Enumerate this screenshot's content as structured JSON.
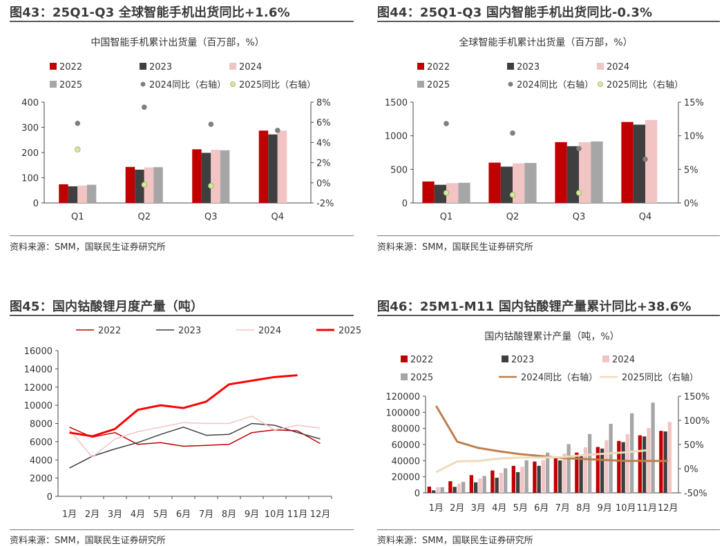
{
  "colors": {
    "c2022": "#c00000",
    "c2023": "#3f3f3f",
    "c2024": "#f2c4c4",
    "c2025": "#a6a6a6",
    "dot2024": "#7f7f7f",
    "dot2025": "#d5e8a3",
    "line2022": "#c00000",
    "line2023": "#3f3f3f",
    "line2024": "#f2c4c4",
    "line2025": "#ff0000",
    "line2024yoy": "#c07d4a",
    "line2025yoy": "#eddcbc"
  },
  "panels": {
    "p43": {
      "title": "图43：25Q1-Q3 全球智能手机出货同比+1.6%",
      "source": "资料来源：SMM，国联民生证券研究所"
    },
    "p44": {
      "title": "图44：25Q1-Q3 国内智能手机出货同比-0.3%",
      "source": "资料来源：SMM，国联民生证券研究所"
    },
    "p45": {
      "title": "图45：国内钴酸锂月度产量（吨）",
      "source": "资料来源：SMM，国联民生证券研究所"
    },
    "p46": {
      "title": "图46：25M1-M11 国内钴酸锂产量累计同比+38.6%",
      "source": "资料来源：SMM，国联民生证券研究所"
    }
  },
  "chart_data": [
    {
      "id": "c43",
      "type": "bar",
      "title": "中国智能手机累计出货量（百万部，%）",
      "categories": [
        "Q1",
        "Q2",
        "Q3",
        "Q4"
      ],
      "ylim": [
        0,
        400
      ],
      "yticks": [
        0,
        100,
        200,
        300,
        400
      ],
      "ytick_labels": [
        "0",
        "100",
        "200",
        "300",
        "400"
      ],
      "y2lim": [
        -2,
        8
      ],
      "y2ticks": [
        -2,
        0,
        2,
        4,
        6,
        8
      ],
      "y2tick_labels": [
        "-2%",
        "0%",
        "2%",
        "4%",
        "6%",
        "8%"
      ],
      "series": [
        {
          "name": "2022",
          "kind": "bar",
          "color_key": "c2022",
          "values": [
            74,
            143,
            213,
            287
          ]
        },
        {
          "name": "2023",
          "kind": "bar",
          "color_key": "c2023",
          "values": [
            66,
            132,
            199,
            272
          ]
        },
        {
          "name": "2024",
          "kind": "bar",
          "color_key": "c2024",
          "values": [
            69,
            141,
            211,
            287
          ]
        },
        {
          "name": "2025",
          "kind": "bar",
          "color_key": "c2025",
          "values": [
            72,
            142,
            209,
            null
          ]
        },
        {
          "name": "2024同比（右轴）",
          "kind": "dot",
          "axis": "right",
          "color_key": "dot2024",
          "values": [
            5.9,
            7.5,
            5.8,
            5.2
          ]
        },
        {
          "name": "2025同比（右轴）",
          "kind": "dot",
          "axis": "right",
          "color_key": "dot2025",
          "values": [
            3.3,
            -0.2,
            -0.3,
            null
          ]
        }
      ]
    },
    {
      "id": "c44",
      "type": "bar",
      "title": "全球智能手机累计出货量（百万部，%）",
      "categories": [
        "Q1",
        "Q2",
        "Q3",
        "Q4"
      ],
      "ylim": [
        0,
        1500
      ],
      "yticks": [
        0,
        500,
        1000,
        1500
      ],
      "ytick_labels": [
        "0",
        "500",
        "1000",
        "1500"
      ],
      "y2lim": [
        0,
        15
      ],
      "y2ticks": [
        0,
        5,
        10,
        15
      ],
      "y2tick_labels": [
        "0%",
        "5%",
        "10%",
        "15%"
      ],
      "series": [
        {
          "name": "2022",
          "kind": "bar",
          "color_key": "c2022",
          "values": [
            320,
            600,
            905,
            1205
          ]
        },
        {
          "name": "2023",
          "kind": "bar",
          "color_key": "c2023",
          "values": [
            270,
            540,
            845,
            1165
          ]
        },
        {
          "name": "2024",
          "kind": "bar",
          "color_key": "c2024",
          "values": [
            295,
            590,
            905,
            1235
          ]
        },
        {
          "name": "2025",
          "kind": "bar",
          "color_key": "c2025",
          "values": [
            300,
            595,
            915,
            null
          ]
        },
        {
          "name": "2024同比（右轴）",
          "kind": "dot",
          "axis": "right",
          "color_key": "dot2024",
          "values": [
            11.8,
            10.4,
            8.1,
            6.5
          ]
        },
        {
          "name": "2025同比（右轴）",
          "kind": "dot",
          "axis": "right",
          "color_key": "dot2025",
          "values": [
            1.5,
            1.2,
            1.5,
            null
          ]
        }
      ]
    },
    {
      "id": "c45",
      "type": "line",
      "categories": [
        "1月",
        "2月",
        "3月",
        "4月",
        "5月",
        "6月",
        "7月",
        "8月",
        "9月",
        "10月",
        "11月",
        "12月"
      ],
      "ylim": [
        0,
        16000
      ],
      "yticks": [
        0,
        2000,
        4000,
        6000,
        8000,
        10000,
        12000,
        14000,
        16000
      ],
      "ytick_labels": [
        "0",
        "2000",
        "4000",
        "6000",
        "8000",
        "10000",
        "12000",
        "14000",
        "16000"
      ],
      "series": [
        {
          "name": "2022",
          "color_key": "line2022",
          "width": 1.5,
          "values": [
            7600,
            6500,
            7000,
            5700,
            5900,
            5500,
            5600,
            5700,
            7000,
            7300,
            7200,
            5800
          ]
        },
        {
          "name": "2023",
          "color_key": "line2023",
          "width": 1.5,
          "values": [
            3100,
            4400,
            5200,
            5900,
            6800,
            7600,
            6700,
            6800,
            8000,
            7800,
            7000,
            6300
          ]
        },
        {
          "name": "2024",
          "color_key": "line2024",
          "width": 1.5,
          "values": [
            7300,
            4300,
            6300,
            7100,
            7600,
            8100,
            8000,
            8000,
            8800,
            7300,
            7800,
            7500
          ]
        },
        {
          "name": "2025",
          "color_key": "line2025",
          "width": 3,
          "values": [
            7000,
            6600,
            7400,
            9500,
            10000,
            9700,
            10400,
            12300,
            12700,
            13100,
            13300,
            null
          ]
        }
      ]
    },
    {
      "id": "c46",
      "type": "bar",
      "title": "国内钴酸锂累计产量（吨，%）",
      "categories": [
        "1月",
        "2月",
        "3月",
        "4月",
        "5月",
        "6月",
        "7月",
        "8月",
        "9月",
        "10月",
        "11月",
        "12月"
      ],
      "ylim": [
        0,
        120000
      ],
      "yticks": [
        0,
        20000,
        40000,
        60000,
        80000,
        100000,
        120000
      ],
      "ytick_labels": [
        "0",
        "20000",
        "40000",
        "60000",
        "80000",
        "100000",
        "120000"
      ],
      "y2lim": [
        -50,
        150
      ],
      "y2ticks": [
        -50,
        0,
        50,
        100,
        150
      ],
      "y2tick_labels": [
        "-50%",
        "0%",
        "50%",
        "100%",
        "150%"
      ],
      "series": [
        {
          "name": "2022",
          "kind": "bar",
          "color_key": "c2022",
          "values": [
            7700,
            14500,
            22000,
            27800,
            33500,
            38800,
            44300,
            50000,
            57000,
            64500,
            71400,
            77000
          ]
        },
        {
          "name": "2023",
          "kind": "bar",
          "color_key": "c2023",
          "values": [
            3100,
            7500,
            13000,
            18800,
            25700,
            33600,
            40300,
            47000,
            55000,
            63000,
            70000,
            76300
          ]
        },
        {
          "name": "2024",
          "kind": "bar",
          "color_key": "c2024",
          "values": [
            7000,
            11300,
            17800,
            24800,
            32500,
            40800,
            48700,
            56600,
            65400,
            72800,
            80500,
            88000
          ]
        },
        {
          "name": "2025",
          "kind": "bar",
          "color_key": "c2025",
          "values": [
            7000,
            13600,
            21000,
            30500,
            40500,
            50000,
            60500,
            73000,
            85700,
            98800,
            112000,
            null
          ]
        },
        {
          "name": "2024同比（右轴）",
          "kind": "line",
          "axis": "right",
          "color_key": "line2024yoy",
          "values": [
            130,
            56,
            43,
            36,
            30,
            26,
            22,
            20,
            18,
            16,
            16,
            16
          ]
        },
        {
          "name": "2025同比（右轴）",
          "kind": "line",
          "axis": "right",
          "color_key": "line2025yoy",
          "values": [
            -7,
            15,
            16,
            21,
            23,
            23,
            24,
            28,
            31,
            34,
            38,
            null
          ]
        }
      ]
    }
  ]
}
